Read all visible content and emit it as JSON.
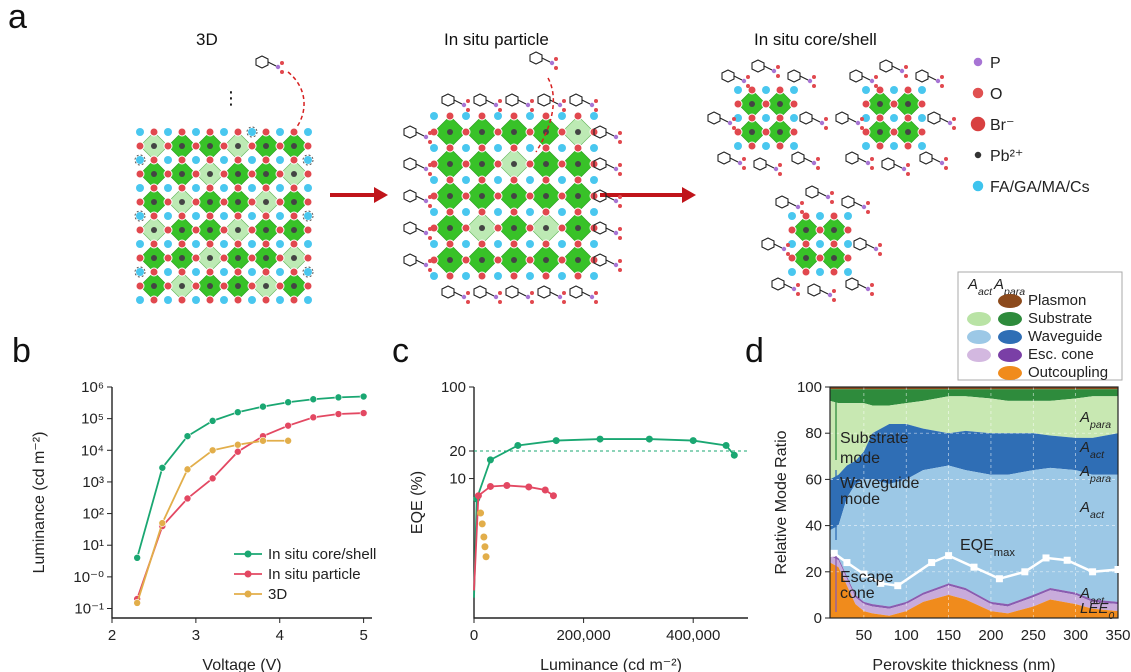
{
  "panel_labels": {
    "a": "a",
    "b": "b",
    "c": "c",
    "d": "d"
  },
  "panel_a": {
    "titles": [
      "3D",
      "In situ particle",
      "In situ core/shell"
    ],
    "ellipsis": "⋮",
    "legend": [
      {
        "label": "P",
        "color": "#a774d4",
        "size": 5
      },
      {
        "label": "O",
        "color": "#e05050",
        "size": 6
      },
      {
        "label": "Br⁻",
        "color": "#d84040",
        "size": 8
      },
      {
        "label": "Pb²⁺",
        "color": "#333333",
        "size": 4
      },
      {
        "label": "FA/GA/MA/Cs",
        "color": "#3ec4ee",
        "size": 6
      }
    ],
    "colors": {
      "octahedron": "#38c228",
      "octahedron_light": "#a8e49c",
      "arrow": "#c0141a",
      "cation": "#49c7ef",
      "halide": "#e1484e"
    }
  },
  "chart_data": [
    {
      "type": "line",
      "panel": "b",
      "xlabel": "Voltage (V)",
      "ylabel": "Luminance (cd m⁻²)",
      "xlim": [
        2,
        5.1
      ],
      "ylim_log10": [
        -1.3,
        6
      ],
      "yscale": "log",
      "xticks": [
        2,
        3,
        4,
        5
      ],
      "yticks": [
        {
          "exp": -1,
          "label": "10⁻¹"
        },
        {
          "exp": 0,
          "label": "10⁻⁰"
        },
        {
          "exp": 1,
          "label": "10¹"
        },
        {
          "exp": 2,
          "label": "10²"
        },
        {
          "exp": 3,
          "label": "10³"
        },
        {
          "exp": 4,
          "label": "10⁴"
        },
        {
          "exp": 5,
          "label": "10⁵"
        },
        {
          "exp": 6,
          "label": "10⁶"
        }
      ],
      "legend_position": "bottom-right",
      "series": [
        {
          "name": "In situ core/shell",
          "color": "#1aa772",
          "x": [
            2.3,
            2.6,
            2.9,
            3.2,
            3.5,
            3.8,
            4.1,
            4.4,
            4.7,
            5.0
          ],
          "y": [
            4,
            2800,
            28000,
            85000,
            160000,
            240000,
            330000,
            410000,
            470000,
            500000
          ]
        },
        {
          "name": "In situ particle",
          "color": "#e34862",
          "x": [
            2.3,
            2.6,
            2.9,
            3.2,
            3.5,
            3.8,
            4.1,
            4.4,
            4.7,
            5.0
          ],
          "y": [
            0.2,
            40,
            300,
            1300,
            9000,
            28000,
            60000,
            110000,
            140000,
            150000
          ]
        },
        {
          "name": "3D",
          "color": "#e2ae4a",
          "x": [
            2.3,
            2.6,
            2.9,
            3.2,
            3.5,
            3.8,
            4.1
          ],
          "y": [
            0.15,
            50,
            2500,
            10000,
            15000,
            20000,
            20000
          ]
        }
      ]
    },
    {
      "type": "scatter",
      "panel": "c",
      "xlabel": "Luminance (cd m⁻²)",
      "ylabel": "EQE (%)",
      "xlim": [
        0,
        500000
      ],
      "yscale": "log",
      "ylim": [
        0.3,
        100
      ],
      "xticks": [
        {
          "value": 0,
          "label": "0"
        },
        {
          "value": 200000,
          "label": "200,000"
        },
        {
          "value": 400000,
          "label": "400,000"
        }
      ],
      "yticks": [
        10,
        20,
        100
      ],
      "reference_line": {
        "y": 20
      },
      "series": [
        {
          "name": "In situ core/shell",
          "color": "#1aa772",
          "x": [
            0,
            5000,
            30000,
            80000,
            150000,
            230000,
            320000,
            400000,
            460000,
            475000
          ],
          "y": [
            0.5,
            6,
            16,
            23,
            26,
            27,
            27,
            26,
            23,
            18
          ]
        },
        {
          "name": "In situ particle",
          "color": "#e34862",
          "x": [
            0,
            8000,
            30000,
            60000,
            100000,
            130000,
            145000
          ],
          "y": [
            0.6,
            6.5,
            8.2,
            8.4,
            8.1,
            7.5,
            6.5
          ]
        },
        {
          "name": "3D",
          "color": "#e2ae4a",
          "x": [
            12000,
            15000,
            18000,
            20000,
            22000
          ],
          "y": [
            4.2,
            3.2,
            2.3,
            1.8,
            1.4
          ]
        }
      ]
    },
    {
      "type": "area",
      "panel": "d",
      "xlabel": "Perovskite thickness (nm)",
      "ylabel": "Relative Mode Ratio",
      "xlim": [
        10,
        350
      ],
      "ylim": [
        0,
        100
      ],
      "xticks": [
        50,
        100,
        150,
        200,
        250,
        300,
        350
      ],
      "yticks": [
        0,
        20,
        40,
        60,
        80,
        100
      ],
      "grid": true,
      "x": [
        10,
        20,
        30,
        40,
        50,
        60,
        80,
        100,
        120,
        150,
        170,
        200,
        220,
        250,
        270,
        300,
        320,
        350
      ],
      "layers": [
        {
          "name": "LEE0",
          "color": "#f08b1c",
          "top": [
            24,
            22,
            14,
            6,
            3,
            2,
            1,
            3,
            7,
            10,
            8,
            3,
            2,
            5,
            8,
            6,
            4,
            3
          ]
        },
        {
          "name": "Escape cone A_act",
          "color": "#c8abdb",
          "top": [
            27,
            25,
            17,
            9,
            6,
            5,
            4,
            6,
            10,
            14,
            12,
            6,
            5,
            9,
            12,
            10,
            7,
            6
          ]
        },
        {
          "name": "Escape cone A_para",
          "color": "#8a5cb0",
          "top": [
            28,
            26,
            18,
            10,
            7,
            6,
            5,
            7,
            11,
            15,
            13,
            7,
            6,
            10,
            13,
            11,
            8,
            7
          ]
        },
        {
          "name": "Waveguide A_act",
          "color": "#9cc8e6",
          "top": [
            38,
            40,
            52,
            58,
            60,
            60,
            58,
            60,
            64,
            66,
            64,
            62,
            62,
            64,
            65,
            64,
            62,
            62
          ]
        },
        {
          "name": "Waveguide A_para",
          "color": "#2f6eb5",
          "top": [
            60,
            62,
            66,
            68,
            72,
            80,
            84,
            84,
            82,
            80,
            81,
            80,
            80,
            80,
            79,
            78,
            78,
            80
          ]
        },
        {
          "name": "Substrate A_act",
          "color": "#c8e8b2",
          "top": [
            94,
            93,
            93,
            93,
            93,
            92,
            92,
            93,
            94,
            96,
            96,
            95,
            94,
            94,
            94,
            95,
            96,
            96
          ]
        },
        {
          "name": "Substrate A_para",
          "color": "#2e8b3c",
          "top": [
            99,
            99,
            99,
            99,
            99,
            99,
            99,
            99,
            99,
            99,
            99,
            99,
            99,
            99,
            99,
            99,
            99,
            99
          ]
        },
        {
          "name": "Plasmon",
          "color": "#8c4a1c",
          "top": [
            100,
            100,
            100,
            100,
            100,
            100,
            100,
            100,
            100,
            100,
            100,
            100,
            100,
            100,
            100,
            100,
            100,
            100
          ]
        }
      ],
      "eqe_max_curve": {
        "label": "EQEmax",
        "label_main": "EQE",
        "label_sub": "max",
        "x": [
          15,
          30,
          50,
          70,
          90,
          130,
          150,
          180,
          210,
          240,
          265,
          290,
          320,
          350
        ],
        "y": [
          28,
          24,
          19,
          15,
          14,
          24,
          27,
          22,
          17,
          20,
          26,
          25,
          20,
          21
        ]
      },
      "annotations": [
        {
          "text": "Substrate\nmode",
          "lines": [
            "Substrate",
            "mode"
          ],
          "color": "#2e8b3c"
        },
        {
          "text": "Waveguide\nmode",
          "lines": [
            "Waveguide",
            "mode"
          ],
          "color": "#2f6eb5"
        },
        {
          "text": "Escape\ncone",
          "lines": [
            "Escape",
            "cone"
          ],
          "color": "#8a5cb0"
        }
      ],
      "layer_labels": [
        {
          "main": "A",
          "sub": "para"
        },
        {
          "main": "A",
          "sub": "act"
        },
        {
          "main": "A",
          "sub": "para"
        },
        {
          "main": "A",
          "sub": "act"
        },
        {
          "main": "A",
          "sub": "act"
        },
        {
          "main": "LEE",
          "sub": "0"
        }
      ],
      "legend": {
        "header_act": "A",
        "header_act_sub": "act",
        "header_para": "A",
        "header_para_sub": "para",
        "rows": [
          {
            "label": "Plasmon",
            "act": null,
            "para": "#8c4a1c"
          },
          {
            "label": "Substrate",
            "act": "#b9e3a5",
            "para": "#2e8b3c"
          },
          {
            "label": "Waveguide",
            "act": "#9cc8e6",
            "para": "#2f6eb5"
          },
          {
            "label": "Esc. cone",
            "act": "#d3b8e0",
            "para": "#7a3fa6"
          },
          {
            "label": "Outcoupling",
            "act": null,
            "para": "#f08b1c"
          }
        ]
      }
    }
  ]
}
